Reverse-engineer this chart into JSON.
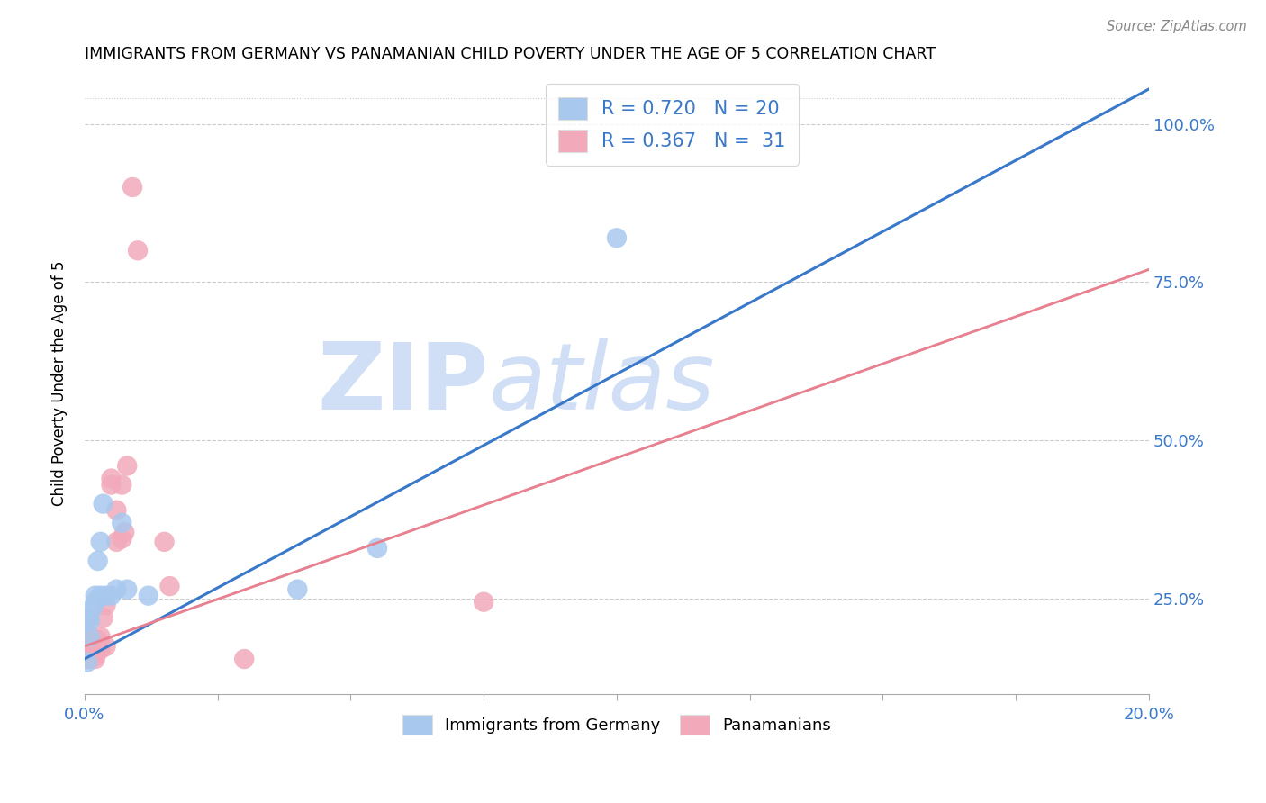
{
  "title": "IMMIGRANTS FROM GERMANY VS PANAMANIAN CHILD POVERTY UNDER THE AGE OF 5 CORRELATION CHART",
  "source": "Source: ZipAtlas.com",
  "ylabel": "Child Poverty Under the Age of 5",
  "legend_blue_r": "R = 0.720",
  "legend_blue_n": "N = 20",
  "legend_pink_r": "R = 0.367",
  "legend_pink_n": "N =  31",
  "blue_color": "#A8C8EE",
  "pink_color": "#F2AABB",
  "blue_line_color": "#3A78C9",
  "pink_line_color": "#E88090",
  "pink_dash_color": "#E0A0B0",
  "watermark_zip": "ZIP",
  "watermark_atlas": "atlas",
  "watermark_color": "#D0DFF5",
  "blue_scatter_x": [
    0.0005,
    0.0008,
    0.001,
    0.001,
    0.0015,
    0.002,
    0.002,
    0.0025,
    0.003,
    0.003,
    0.0035,
    0.004,
    0.005,
    0.006,
    0.007,
    0.008,
    0.012,
    0.04,
    0.055,
    0.1
  ],
  "blue_scatter_y": [
    0.15,
    0.22,
    0.19,
    0.215,
    0.235,
    0.245,
    0.255,
    0.31,
    0.255,
    0.34,
    0.4,
    0.255,
    0.255,
    0.265,
    0.37,
    0.265,
    0.255,
    0.265,
    0.33,
    0.82
  ],
  "pink_scatter_x": [
    0.0002,
    0.0005,
    0.001,
    0.001,
    0.001,
    0.001,
    0.0015,
    0.002,
    0.002,
    0.002,
    0.0025,
    0.003,
    0.003,
    0.003,
    0.0035,
    0.004,
    0.004,
    0.005,
    0.005,
    0.006,
    0.006,
    0.007,
    0.007,
    0.0075,
    0.008,
    0.009,
    0.01,
    0.015,
    0.016,
    0.03,
    0.075
  ],
  "pink_scatter_y": [
    0.215,
    0.195,
    0.155,
    0.16,
    0.165,
    0.185,
    0.16,
    0.155,
    0.16,
    0.165,
    0.185,
    0.175,
    0.17,
    0.19,
    0.22,
    0.175,
    0.24,
    0.44,
    0.43,
    0.39,
    0.34,
    0.345,
    0.43,
    0.355,
    0.46,
    0.9,
    0.8,
    0.34,
    0.27,
    0.155,
    0.245
  ],
  "xmin": 0.0,
  "xmax": 0.2,
  "ymin": 0.1,
  "ymax": 1.08,
  "blue_line_x0": 0.0,
  "blue_line_x1": 0.2,
  "blue_line_y0": 0.155,
  "blue_line_y1": 1.055,
  "pink_line_x0": 0.0,
  "pink_line_x1": 0.2,
  "pink_line_y0": 0.175,
  "pink_line_y1": 0.77,
  "xtick_positions": [
    0.0,
    0.025,
    0.05,
    0.075,
    0.1,
    0.125,
    0.15,
    0.175,
    0.2
  ],
  "ytick_positions": [
    0.25,
    0.5,
    0.75,
    1.0
  ],
  "right_yticklabels": [
    "25.0%",
    "50.0%",
    "75.0%",
    "100.0%"
  ]
}
